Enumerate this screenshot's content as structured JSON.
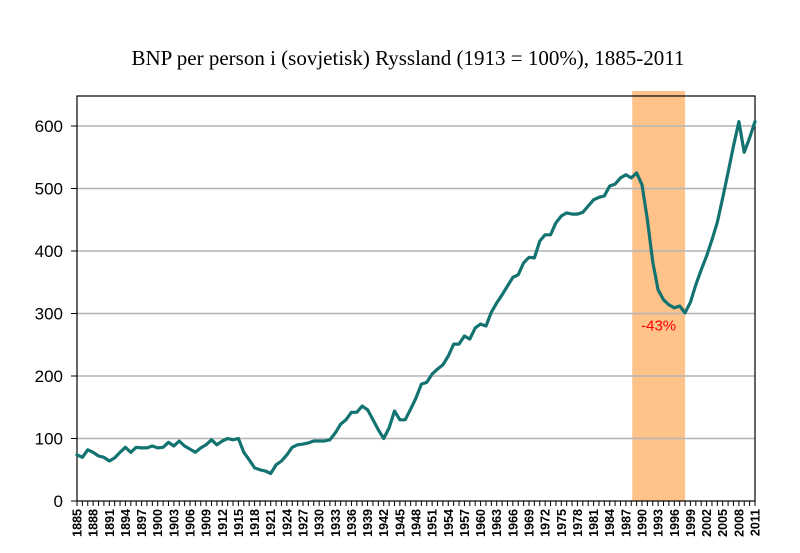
{
  "chart_data": {
    "type": "line",
    "title": "BNP per person i (sovjetisk) Ryssland (1913 = 100%), 1885-2011",
    "xlabel": "",
    "ylabel": "",
    "xlim": [
      1885,
      2011
    ],
    "ylim": [
      0,
      650
    ],
    "yticks": [
      0,
      100,
      200,
      300,
      400,
      500,
      600
    ],
    "ytick_labels": [
      "0",
      "100",
      "200",
      "300",
      "400",
      "500",
      "600"
    ],
    "xtick_labels": [
      "1885",
      "1888",
      "1891",
      "1894",
      "1897",
      "1900",
      "1903",
      "1906",
      "1909",
      "1912",
      "1915",
      "1918",
      "1921",
      "1924",
      "1927",
      "1930",
      "1933",
      "1936",
      "1939",
      "1942",
      "1945",
      "1948",
      "1951",
      "1954",
      "1957",
      "1960",
      "1963",
      "1966",
      "1969",
      "1972",
      "1975",
      "1978",
      "1981",
      "1984",
      "1987",
      "1990",
      "1993",
      "1996",
      "1999",
      "2002",
      "2005",
      "2008",
      "2011"
    ],
    "grid": true,
    "line_color": "#137371",
    "highlight": {
      "start": 1988,
      "end": 1998,
      "color": "#FFC38A",
      "label": "-43%",
      "label_color": "#ff0000"
    },
    "series": [
      {
        "name": "BNP per person",
        "x": [
          1885,
          1886,
          1887,
          1888,
          1889,
          1890,
          1891,
          1892,
          1893,
          1894,
          1895,
          1896,
          1897,
          1898,
          1899,
          1900,
          1901,
          1902,
          1903,
          1904,
          1905,
          1906,
          1907,
          1908,
          1909,
          1910,
          1911,
          1912,
          1913,
          1914,
          1915,
          1916,
          1917,
          1918,
          1919,
          1920,
          1921,
          1922,
          1923,
          1924,
          1925,
          1926,
          1927,
          1928,
          1929,
          1930,
          1931,
          1932,
          1933,
          1934,
          1935,
          1936,
          1937,
          1938,
          1939,
          1940,
          1941,
          1942,
          1943,
          1944,
          1945,
          1946,
          1947,
          1948,
          1949,
          1950,
          1951,
          1952,
          1953,
          1954,
          1955,
          1956,
          1957,
          1958,
          1959,
          1960,
          1961,
          1962,
          1963,
          1964,
          1965,
          1966,
          1967,
          1968,
          1969,
          1970,
          1971,
          1972,
          1973,
          1974,
          1975,
          1976,
          1977,
          1978,
          1979,
          1980,
          1981,
          1982,
          1983,
          1984,
          1985,
          1986,
          1987,
          1988,
          1989,
          1990,
          1991,
          1992,
          1993,
          1994,
          1995,
          1996,
          1997,
          1998,
          1999,
          2000,
          2001,
          2002,
          2003,
          2004,
          2005,
          2006,
          2007,
          2008,
          2009,
          2010,
          2011
        ],
        "values": [
          74,
          70,
          82,
          78,
          72,
          70,
          64,
          69,
          78,
          86,
          78,
          86,
          85,
          85,
          88,
          85,
          86,
          94,
          88,
          96,
          88,
          83,
          78,
          85,
          90,
          98,
          90,
          96,
          100,
          98,
          100,
          78,
          66,
          53,
          50,
          48,
          44,
          58,
          64,
          74,
          86,
          90,
          91,
          93,
          96,
          96,
          96,
          98,
          109,
          123,
          130,
          142,
          142,
          152,
          146,
          130,
          114,
          100,
          117,
          144,
          130,
          130,
          147,
          165,
          187,
          190,
          203,
          211,
          218,
          232,
          251,
          251,
          264,
          259,
          277,
          283,
          280,
          302,
          317,
          330,
          344,
          358,
          362,
          381,
          390,
          389,
          416,
          426,
          426,
          445,
          456,
          461,
          459,
          459,
          462,
          472,
          482,
          486,
          488,
          504,
          507,
          517,
          522,
          517,
          525,
          506,
          450,
          382,
          338,
          322,
          314,
          309,
          312,
          301,
          318,
          346,
          370,
          392,
          418,
          446,
          485,
          526,
          568,
          607,
          558,
          581,
          607
        ]
      }
    ]
  }
}
